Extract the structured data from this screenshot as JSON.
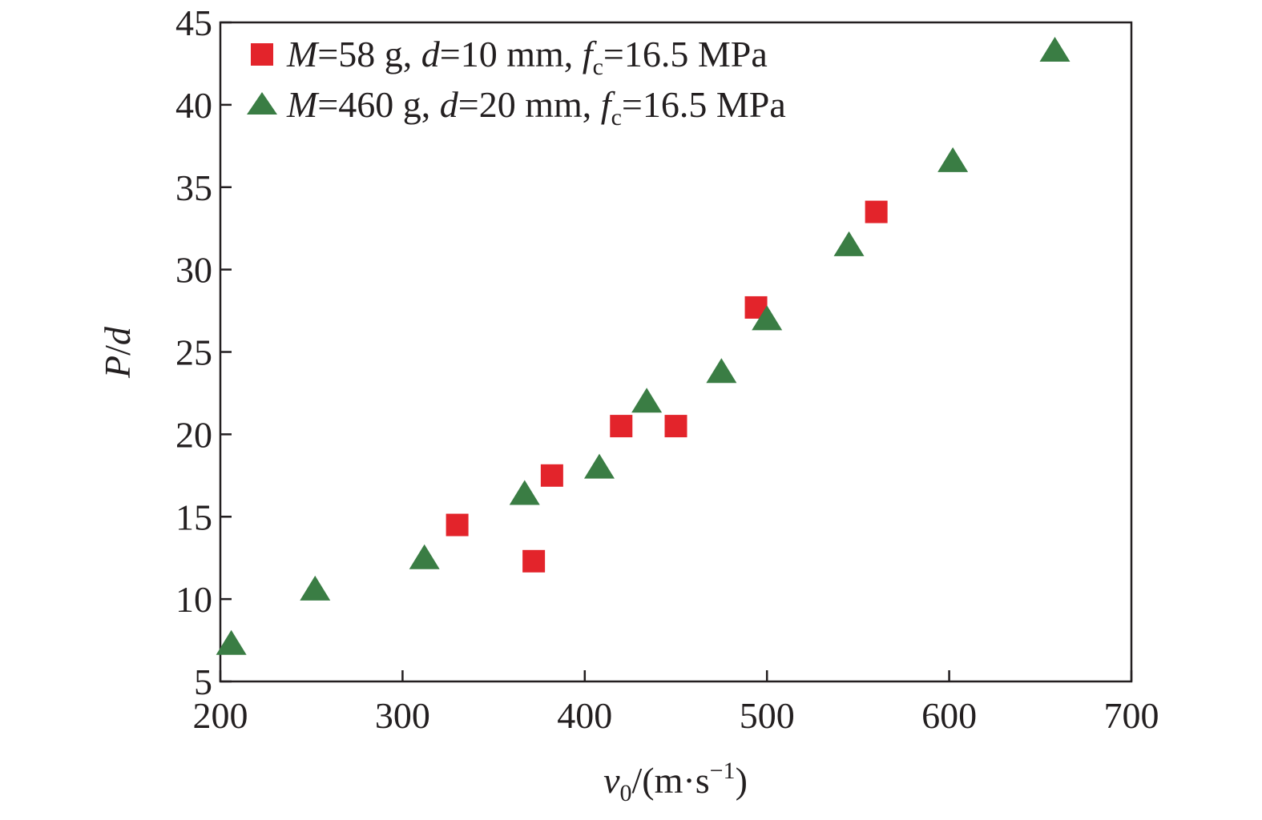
{
  "chart_data": {
    "type": "scatter",
    "xlabel": {
      "var": "v",
      "sub": "0",
      "unit_pre": "/(m·s",
      "sup": "−1",
      "unit_post": ")"
    },
    "ylabel": {
      "a": "P",
      "sep": "/",
      "b": "d"
    },
    "xlim": [
      200,
      700
    ],
    "ylim": [
      5,
      45
    ],
    "xticks": [
      "200",
      "300",
      "400",
      "500",
      "600",
      "700"
    ],
    "yticks": [
      "5",
      "10",
      "15",
      "20",
      "25",
      "30",
      "35",
      "40",
      "45"
    ],
    "grid": false,
    "legend_position": "top-left",
    "series": [
      {
        "marker": "square",
        "color": "#e3242b",
        "legend": {
          "m_var": "M",
          "m_val": "=58 g, ",
          "d_var": "d",
          "d_val": "=10 mm, ",
          "f_var": "f",
          "f_sub": "c",
          "f_val": "=16.5 MPa"
        },
        "points": [
          [
            330,
            14.5
          ],
          [
            372,
            12.3
          ],
          [
            382,
            17.5
          ],
          [
            420,
            20.5
          ],
          [
            450,
            20.5
          ],
          [
            494,
            27.7
          ],
          [
            560,
            33.5
          ]
        ]
      },
      {
        "marker": "triangle",
        "color": "#3a7d44",
        "legend": {
          "m_var": "M",
          "m_val": "=460 g, ",
          "d_var": "d",
          "d_val": "=20 mm, ",
          "f_var": "f",
          "f_sub": "c",
          "f_val": "=16.5 MPa"
        },
        "points": [
          [
            206,
            7.2
          ],
          [
            252,
            10.5
          ],
          [
            312,
            12.4
          ],
          [
            367,
            16.3
          ],
          [
            408,
            17.9
          ],
          [
            434,
            21.9
          ],
          [
            475,
            23.7
          ],
          [
            500,
            26.9
          ],
          [
            545,
            31.4
          ],
          [
            602,
            36.5
          ],
          [
            658,
            43.2
          ]
        ]
      }
    ]
  }
}
